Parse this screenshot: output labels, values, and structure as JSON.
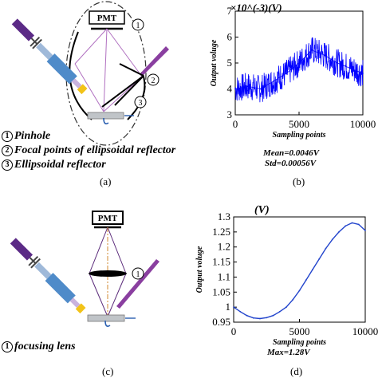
{
  "panel_a": {
    "pmt_label": "PMT",
    "callouts": [
      "1",
      "2",
      "3"
    ],
    "legend": [
      {
        "num": "1",
        "text": "Pinhole"
      },
      {
        "num": "2",
        "text": "Focal points of ellipsoidal reflector"
      },
      {
        "num": "3",
        "text": "Ellipsoidal reflector"
      }
    ],
    "caption": "(a)"
  },
  "panel_b": {
    "caption": "(b)",
    "mean_text": "Mean=0.0046V",
    "std_text": "Std=0.00056V",
    "chart_data": {
      "type": "line",
      "title": "×10^(-3)(V)",
      "xlabel": "Sampling points",
      "ylabel": "Output voluge",
      "xlim": [
        0,
        10000
      ],
      "ylim": [
        3,
        7
      ],
      "xticks": [
        "0",
        "5000",
        "10000"
      ],
      "yticks": [
        "3",
        "4",
        "5",
        "6",
        "7"
      ],
      "series_color": "#0000ff",
      "x": [
        0,
        1000,
        2000,
        3000,
        4000,
        5000,
        6000,
        7000,
        8000,
        9000,
        10000
      ],
      "y": [
        4.0,
        4.1,
        4.0,
        4.3,
        4.6,
        5.0,
        5.5,
        5.3,
        5.0,
        4.8,
        4.6
      ],
      "noise_band": 0.55
    }
  },
  "panel_c": {
    "pmt_label": "PMT",
    "callouts": [
      "1"
    ],
    "legend": [
      {
        "num": "1",
        "text": "focusing lens"
      }
    ],
    "caption": "(c)"
  },
  "panel_d": {
    "caption": "(d)",
    "max_text": "Max=1.28V",
    "chart_data": {
      "type": "line",
      "title": "(V)",
      "xlabel": "Sampling points",
      "ylabel": "Output voluge",
      "xlim": [
        0,
        10000
      ],
      "ylim": [
        0.95,
        1.3
      ],
      "xticks": [
        "0",
        "5000",
        "10000"
      ],
      "yticks": [
        "0.95",
        "1",
        "1.05",
        "1.1",
        "1.15",
        "1.2",
        "1.25",
        "1.3"
      ],
      "series_color": "#2244cc",
      "x": [
        0,
        500,
        1000,
        1500,
        2000,
        2500,
        3000,
        3500,
        4000,
        4500,
        5000,
        5500,
        6000,
        6500,
        7000,
        7500,
        8000,
        8500,
        9000,
        9500,
        10000
      ],
      "y": [
        1.0,
        0.985,
        0.972,
        0.964,
        0.962,
        0.965,
        0.972,
        0.985,
        1.0,
        1.025,
        1.055,
        1.09,
        1.125,
        1.16,
        1.195,
        1.225,
        1.25,
        1.27,
        1.28,
        1.275,
        1.255
      ]
    }
  }
}
